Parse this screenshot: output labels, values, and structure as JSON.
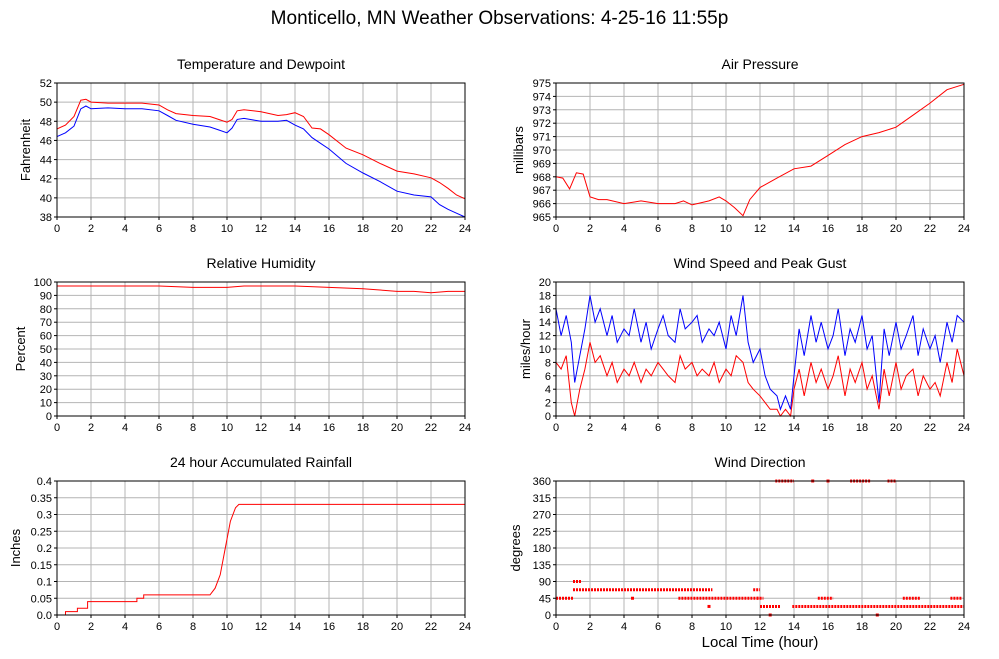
{
  "page_title": "Monticello, MN Weather Observations: 4-25-16 11:55p",
  "shared_xlabel": "Local Time (hour)",
  "colors": {
    "primary": "#ff0000",
    "secondary": "#0000ff",
    "grid": "#b4b4b4"
  },
  "chart_data": [
    {
      "id": "temperature",
      "type": "line",
      "title": "Temperature and Dewpoint",
      "xlabel": "",
      "ylabel": "Fahrenheit",
      "xlim": [
        0,
        24
      ],
      "ylim": [
        38,
        52
      ],
      "xticks": [
        0,
        2,
        4,
        6,
        8,
        10,
        12,
        14,
        16,
        18,
        20,
        22,
        24
      ],
      "yticks": [
        38,
        40,
        42,
        44,
        46,
        48,
        50,
        52
      ],
      "grid": true,
      "series": [
        {
          "color": "#ff0000",
          "x": [
            0,
            0.5,
            1,
            1.4,
            1.7,
            2,
            3,
            4,
            5,
            6,
            6.5,
            7,
            8,
            9,
            9.5,
            10,
            10.3,
            10.6,
            11,
            12,
            13,
            13.5,
            14,
            14.5,
            15,
            15.5,
            16,
            17,
            18,
            19,
            20,
            21,
            22,
            22.5,
            23,
            23.5,
            24
          ],
          "y": [
            47.2,
            47.6,
            48.5,
            50.2,
            50.3,
            50.0,
            49.9,
            49.9,
            49.9,
            49.7,
            49.2,
            48.8,
            48.6,
            48.5,
            48.2,
            47.9,
            48.2,
            49.1,
            49.2,
            49.0,
            48.6,
            48.7,
            48.9,
            48.5,
            47.3,
            47.2,
            46.6,
            45.2,
            44.5,
            43.6,
            42.8,
            42.5,
            42.1,
            41.6,
            41.0,
            40.3,
            39.9
          ]
        },
        {
          "color": "#0000ff",
          "x": [
            0,
            0.5,
            1,
            1.4,
            1.7,
            2,
            3,
            4,
            5,
            6,
            6.5,
            7,
            8,
            9,
            9.5,
            10,
            10.3,
            10.6,
            11,
            12,
            13,
            13.5,
            14,
            14.5,
            15,
            15.5,
            16,
            17,
            18,
            19,
            20,
            21,
            22,
            22.5,
            23,
            23.5,
            24
          ],
          "y": [
            46.4,
            46.8,
            47.5,
            49.3,
            49.6,
            49.3,
            49.4,
            49.3,
            49.3,
            49.1,
            48.6,
            48.1,
            47.7,
            47.4,
            47.1,
            46.8,
            47.3,
            48.2,
            48.3,
            48.0,
            48.0,
            48.1,
            47.6,
            47.2,
            46.3,
            45.7,
            45.1,
            43.6,
            42.6,
            41.7,
            40.7,
            40.3,
            40.1,
            39.3,
            38.8,
            38.4,
            38.0
          ]
        }
      ]
    },
    {
      "id": "pressure",
      "type": "line",
      "title": "Air Pressure",
      "xlabel": "",
      "ylabel": "millibars",
      "xlim": [
        0,
        24
      ],
      "ylim": [
        965,
        975
      ],
      "xticks": [
        0,
        2,
        4,
        6,
        8,
        10,
        12,
        14,
        16,
        18,
        20,
        22,
        24
      ],
      "yticks": [
        965,
        966,
        967,
        968,
        969,
        970,
        971,
        972,
        973,
        974,
        975
      ],
      "grid": true,
      "series": [
        {
          "color": "#ff0000",
          "x": [
            0,
            0.4,
            0.8,
            1.2,
            1.6,
            2,
            2.5,
            3,
            4,
            5,
            6,
            7,
            7.5,
            8,
            9,
            9.6,
            10,
            10.5,
            11,
            11.4,
            12,
            13,
            14,
            15,
            16,
            17,
            18,
            19,
            20,
            21,
            22,
            23,
            24
          ],
          "y": [
            968,
            967.9,
            967.1,
            968.3,
            968.2,
            966.5,
            966.3,
            966.3,
            966,
            966.2,
            966,
            966,
            966.2,
            965.9,
            966.2,
            966.5,
            966.2,
            965.7,
            965.1,
            966.3,
            967.2,
            967.9,
            968.6,
            968.8,
            969.6,
            970.4,
            971.0,
            971.3,
            971.7,
            972.6,
            973.5,
            974.5,
            974.9
          ]
        }
      ]
    },
    {
      "id": "humidity",
      "type": "line",
      "title": "Relative Humidity",
      "xlabel": "",
      "ylabel": "Percent",
      "xlim": [
        0,
        24
      ],
      "ylim": [
        0,
        100
      ],
      "xticks": [
        0,
        2,
        4,
        6,
        8,
        10,
        12,
        14,
        16,
        18,
        20,
        22,
        24
      ],
      "yticks": [
        0,
        10,
        20,
        30,
        40,
        50,
        60,
        70,
        80,
        90,
        100
      ],
      "grid": true,
      "series": [
        {
          "color": "#ff0000",
          "x": [
            0,
            2,
            4,
            6,
            8,
            9,
            10,
            11,
            12,
            14,
            16,
            18,
            19,
            20,
            21,
            22,
            23,
            24
          ],
          "y": [
            97,
            97,
            97,
            97,
            96,
            96,
            96,
            97,
            97,
            97,
            96,
            95,
            94,
            93,
            93,
            92,
            93,
            93
          ]
        }
      ]
    },
    {
      "id": "wind",
      "type": "line",
      "title": "Wind Speed and Peak Gust",
      "xlabel": "",
      "ylabel": "miles/hour",
      "xlim": [
        0,
        24
      ],
      "ylim": [
        0,
        20
      ],
      "xticks": [
        0,
        2,
        4,
        6,
        8,
        10,
        12,
        14,
        16,
        18,
        20,
        22,
        24
      ],
      "yticks": [
        0,
        2,
        4,
        6,
        8,
        10,
        12,
        14,
        16,
        18,
        20
      ],
      "grid": true,
      "series": [
        {
          "color": "#0000ff",
          "x": [
            0,
            0.3,
            0.6,
            0.9,
            1.1,
            1.4,
            1.7,
            2,
            2.3,
            2.6,
            3,
            3.3,
            3.6,
            4,
            4.3,
            4.6,
            5,
            5.3,
            5.6,
            6,
            6.3,
            6.6,
            7,
            7.3,
            7.6,
            8,
            8.3,
            8.6,
            9,
            9.3,
            9.6,
            10,
            10.3,
            10.6,
            11,
            11.3,
            11.6,
            12,
            12.3,
            12.6,
            13,
            13.2,
            13.5,
            13.8,
            14,
            14.3,
            14.6,
            15,
            15.3,
            15.6,
            16,
            16.3,
            16.6,
            17,
            17.3,
            17.6,
            18,
            18.3,
            18.6,
            19,
            19.3,
            19.6,
            20,
            20.3,
            20.6,
            21,
            21.3,
            21.6,
            22,
            22.3,
            22.6,
            23,
            23.3,
            23.6,
            24
          ],
          "y": [
            16,
            12,
            15,
            11,
            5,
            9,
            13,
            18,
            14,
            16,
            12,
            15,
            11,
            13,
            12,
            16,
            11,
            14,
            10,
            13,
            15,
            12,
            11,
            16,
            13,
            14,
            15,
            11,
            13,
            12,
            14,
            10,
            15,
            12,
            18,
            11,
            8,
            10,
            6,
            4,
            3,
            1,
            3,
            1,
            6,
            13,
            9,
            15,
            11,
            14,
            10,
            12,
            16,
            9,
            13,
            11,
            15,
            10,
            12,
            2,
            13,
            9,
            14,
            10,
            12,
            15,
            9,
            13,
            10,
            12,
            8,
            14,
            11,
            15,
            14
          ]
        },
        {
          "color": "#ff0000",
          "x": [
            0,
            0.3,
            0.6,
            0.9,
            1.1,
            1.4,
            1.7,
            2,
            2.3,
            2.6,
            3,
            3.3,
            3.6,
            4,
            4.3,
            4.6,
            5,
            5.3,
            5.6,
            6,
            6.3,
            6.6,
            7,
            7.3,
            7.6,
            8,
            8.3,
            8.6,
            9,
            9.3,
            9.6,
            10,
            10.3,
            10.6,
            11,
            11.3,
            11.6,
            12,
            12.3,
            12.6,
            13,
            13.2,
            13.5,
            13.8,
            14,
            14.3,
            14.6,
            15,
            15.3,
            15.6,
            16,
            16.3,
            16.6,
            17,
            17.3,
            17.6,
            18,
            18.3,
            18.6,
            19,
            19.3,
            19.6,
            20,
            20.3,
            20.6,
            21,
            21.3,
            21.6,
            22,
            22.3,
            22.6,
            23,
            23.3,
            23.6,
            24
          ],
          "y": [
            8,
            7,
            9,
            2,
            0,
            4,
            7,
            11,
            8,
            9,
            6,
            8,
            5,
            7,
            6,
            8,
            5,
            7,
            6,
            8,
            7,
            6,
            5,
            9,
            7,
            8,
            6,
            7,
            6,
            8,
            5,
            7,
            6,
            9,
            8,
            5,
            4,
            3,
            2,
            1,
            1,
            0,
            1,
            0,
            4,
            7,
            3,
            8,
            5,
            7,
            4,
            6,
            9,
            3,
            7,
            5,
            8,
            4,
            6,
            1,
            7,
            3,
            8,
            4,
            6,
            7,
            3,
            6,
            4,
            5,
            3,
            8,
            5,
            10,
            6
          ]
        }
      ]
    },
    {
      "id": "rainfall",
      "type": "line",
      "title": "24 hour Accumulated Rainfall",
      "xlabel": "",
      "ylabel": "Inches",
      "xlim": [
        0,
        24
      ],
      "ylim": [
        0,
        0.4
      ],
      "xticks": [
        0,
        2,
        4,
        6,
        8,
        10,
        12,
        14,
        16,
        18,
        20,
        22,
        24
      ],
      "yticks": [
        0.0,
        0.05,
        0.1,
        0.15,
        0.2,
        0.25,
        0.3,
        0.35,
        0.4
      ],
      "ytick_labels": [
        "0.0",
        "0.05",
        "0.1",
        "0.15",
        "0.2",
        "0.25",
        "0.3",
        "0.35",
        "0.4"
      ],
      "grid": true,
      "series": [
        {
          "color": "#ff0000",
          "x": [
            0,
            0.5,
            0.5,
            1.2,
            1.2,
            1.8,
            1.8,
            4.7,
            4.7,
            5.1,
            5.1,
            9.0,
            9.3,
            9.6,
            9.9,
            10.2,
            10.5,
            10.7,
            24
          ],
          "y": [
            0,
            0,
            0.01,
            0.01,
            0.02,
            0.02,
            0.04,
            0.04,
            0.05,
            0.05,
            0.06,
            0.06,
            0.08,
            0.12,
            0.2,
            0.28,
            0.32,
            0.33,
            0.33
          ]
        }
      ]
    },
    {
      "id": "direction",
      "type": "scatter",
      "title": "Wind Direction",
      "xlabel": "",
      "ylabel": "degrees",
      "xlim": [
        0,
        24
      ],
      "ylim": [
        0,
        360
      ],
      "xticks": [
        0,
        2,
        4,
        6,
        8,
        10,
        12,
        14,
        16,
        18,
        20,
        22,
        24
      ],
      "yticks": [
        0,
        45,
        90,
        135,
        180,
        225,
        270,
        315,
        360
      ],
      "grid": true,
      "series": [
        {
          "color": "#ff0000",
          "segments": [
            {
              "x0": 0,
              "x1": 1.0,
              "y": 45
            },
            {
              "x0": 1.0,
              "x1": 1.5,
              "y": 90
            },
            {
              "x0": 1.0,
              "x1": 7.0,
              "y": 68
            },
            {
              "x0": 7.0,
              "x1": 9.2,
              "y": 68
            },
            {
              "x0": 7.2,
              "x1": 12.0,
              "y": 45
            },
            {
              "x0": 12.0,
              "x1": 13.2,
              "y": 23
            },
            {
              "x0": 11.8,
              "x1": 12.2,
              "y": 45
            },
            {
              "x0": 11.6,
              "x1": 12.0,
              "y": 68
            },
            {
              "x0": 12.9,
              "x1": 14.0,
              "y": 360
            },
            {
              "x0": 13.9,
              "x1": 24,
              "y": 23
            },
            {
              "x0": 15.4,
              "x1": 16.3,
              "y": 45
            },
            {
              "x0": 17.3,
              "x1": 18.5,
              "y": 360
            },
            {
              "x0": 19.5,
              "x1": 20.0,
              "y": 360
            },
            {
              "x0": 20.4,
              "x1": 21.4,
              "y": 45
            },
            {
              "x0": 23.2,
              "x1": 23.9,
              "y": 45
            }
          ],
          "points": [
            {
              "x": 15.1,
              "y": 360
            },
            {
              "x": 16.0,
              "y": 360
            },
            {
              "x": 18.9,
              "y": 0
            },
            {
              "x": 9.0,
              "y": 23
            },
            {
              "x": 4.5,
              "y": 45
            },
            {
              "x": 12.6,
              "y": 0
            }
          ]
        }
      ]
    }
  ]
}
